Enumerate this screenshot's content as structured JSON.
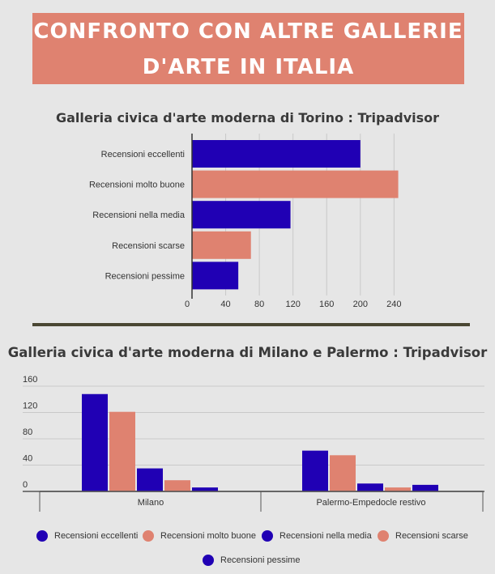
{
  "banner": {
    "line1": "CONFRONTO CON ALTRE GALLERIE",
    "line2": "D'ARTE IN ITALIA"
  },
  "colors": {
    "banner": "#df8270",
    "blue": "#2000b4",
    "salmon": "#df8270"
  },
  "chart_data": [
    {
      "type": "bar",
      "orientation": "horizontal",
      "title": "Galleria civica d'arte moderna di Torino : Tripadvisor",
      "categories": [
        "Recensioni eccellenti",
        "Recensioni molto buone",
        "Recensioni nella media",
        "Recensioni scarse",
        "Recensioni pessime"
      ],
      "values": [
        200,
        245,
        117,
        70,
        55
      ],
      "bar_colors": [
        "#2000b4",
        "#df8270",
        "#2000b4",
        "#df8270",
        "#2000b4"
      ],
      "xticks": [
        0,
        40,
        80,
        120,
        160,
        200,
        240
      ],
      "xlim": [
        0,
        270
      ],
      "grid": true
    },
    {
      "type": "bar",
      "orientation": "vertical",
      "title": "Galleria civica d'arte moderna di Milano e Palermo : Tripadvisor",
      "categories": [
        "Milano",
        "Palermo-Empedocle restivo"
      ],
      "series": [
        {
          "name": "Recensioni eccellenti",
          "values": [
            148,
            62
          ],
          "color": "#2000b4"
        },
        {
          "name": "Recensioni molto buone",
          "values": [
            121,
            55
          ],
          "color": "#df8270"
        },
        {
          "name": "Recensioni nella media",
          "values": [
            35,
            12
          ],
          "color": "#2000b4"
        },
        {
          "name": "Recensioni scarse",
          "values": [
            17,
            6
          ],
          "color": "#df8270"
        },
        {
          "name": "Recensioni pessime",
          "values": [
            6,
            10
          ],
          "color": "#2000b4"
        }
      ],
      "yticks": [
        0,
        40,
        80,
        120,
        160
      ],
      "ylim": [
        0,
        160
      ],
      "grid": true,
      "legend": "bottom"
    }
  ]
}
